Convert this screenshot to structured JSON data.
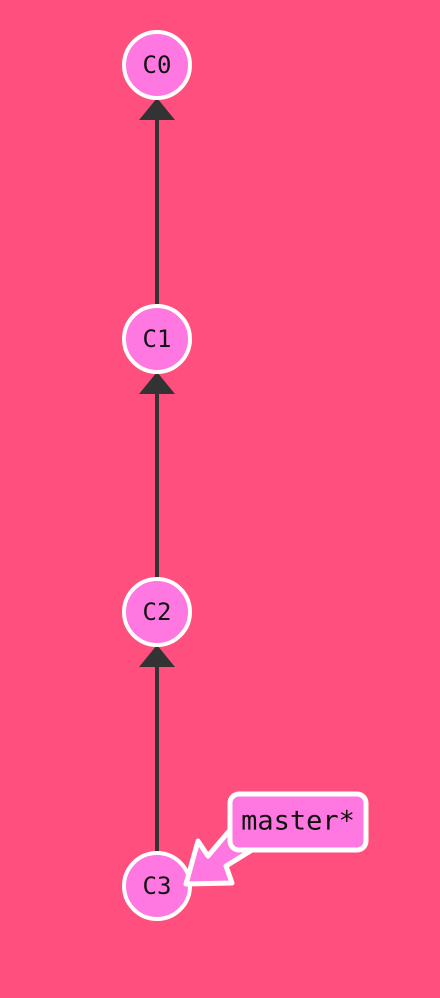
{
  "colors": {
    "background": "#ff4f7e",
    "commit_fill": "#ff77e0",
    "commit_stroke": "#ffffff",
    "edge": "#333333",
    "branch_fill": "#ff77e0",
    "branch_stroke": "#ffffff",
    "text": "#111111"
  },
  "commits": [
    {
      "id": "C0",
      "label": "C0"
    },
    {
      "id": "C1",
      "label": "C1"
    },
    {
      "id": "C2",
      "label": "C2"
    },
    {
      "id": "C3",
      "label": "C3"
    }
  ],
  "edges": [
    {
      "from": "C1",
      "to": "C0"
    },
    {
      "from": "C2",
      "to": "C1"
    },
    {
      "from": "C3",
      "to": "C2"
    }
  ],
  "branch": {
    "label": "master*",
    "target": "C3"
  }
}
